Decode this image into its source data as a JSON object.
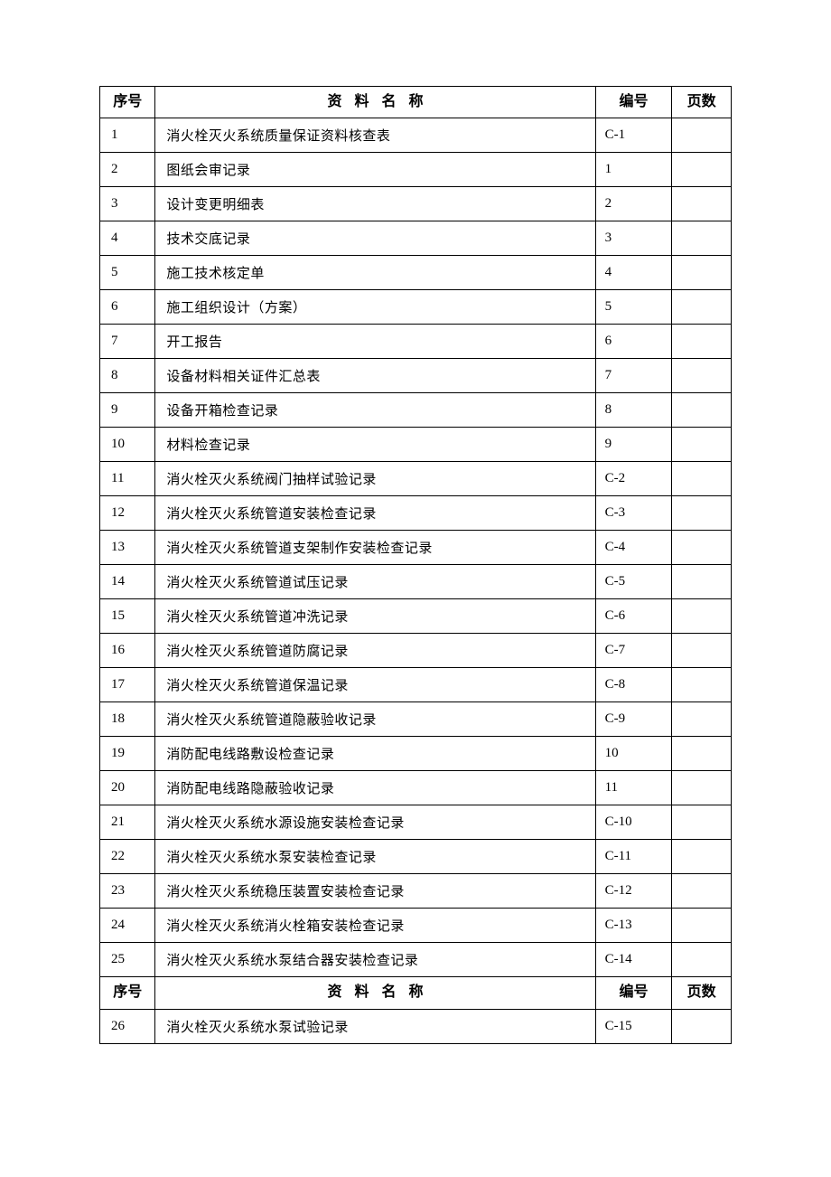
{
  "table": {
    "header": {
      "seq": "序号",
      "name": "资料名称",
      "code": "编号",
      "pages": "页数"
    },
    "columns_width": {
      "seq": 58,
      "name": 460,
      "code": 80,
      "pages": 62
    },
    "colors": {
      "border": "#000000",
      "text": "#000000",
      "background": "#ffffff"
    },
    "typography": {
      "font_family": "SimSun",
      "header_fontsize": 16,
      "header_fontweight": "bold",
      "body_fontsize": 15,
      "header_name_letterspacing": 14
    },
    "rows": [
      {
        "seq": "1",
        "name": "消火栓灭火系统质量保证资料核查表",
        "code": "C-1",
        "pages": ""
      },
      {
        "seq": "2",
        "name": "图纸会审记录",
        "code": "1",
        "pages": ""
      },
      {
        "seq": "3",
        "name": "设计变更明细表",
        "code": "2",
        "pages": ""
      },
      {
        "seq": "4",
        "name": "技术交底记录",
        "code": "3",
        "pages": ""
      },
      {
        "seq": "5",
        "name": "施工技术核定单",
        "code": "4",
        "pages": ""
      },
      {
        "seq": "6",
        "name": "施工组织设计（方案）",
        "code": "5",
        "pages": ""
      },
      {
        "seq": "7",
        "name": "开工报告",
        "code": "6",
        "pages": ""
      },
      {
        "seq": "8",
        "name": "设备材料相关证件汇总表",
        "code": "7",
        "pages": ""
      },
      {
        "seq": "9",
        "name": "设备开箱检查记录",
        "code": "8",
        "pages": ""
      },
      {
        "seq": "10",
        "name": "材料检查记录",
        "code": "9",
        "pages": ""
      },
      {
        "seq": "11",
        "name": "消火栓灭火系统阀门抽样试验记录",
        "code": "C-2",
        "pages": ""
      },
      {
        "seq": "12",
        "name": "消火栓灭火系统管道安装检查记录",
        "code": "C-3",
        "pages": ""
      },
      {
        "seq": "13",
        "name": "消火栓灭火系统管道支架制作安装检查记录",
        "code": "C-4",
        "pages": ""
      },
      {
        "seq": "14",
        "name": "消火栓灭火系统管道试压记录",
        "code": "C-5",
        "pages": ""
      },
      {
        "seq": "15",
        "name": "消火栓灭火系统管道冲洗记录",
        "code": "C-6",
        "pages": ""
      },
      {
        "seq": "16",
        "name": "消火栓灭火系统管道防腐记录",
        "code": "C-7",
        "pages": ""
      },
      {
        "seq": "17",
        "name": "消火栓灭火系统管道保温记录",
        "code": "C-8",
        "pages": ""
      },
      {
        "seq": "18",
        "name": "消火栓灭火系统管道隐蔽验收记录",
        "code": "C-9",
        "pages": ""
      },
      {
        "seq": "19",
        "name": "消防配电线路敷设检查记录",
        "code": "10",
        "pages": ""
      },
      {
        "seq": "20",
        "name": "消防配电线路隐蔽验收记录",
        "code": "11",
        "pages": ""
      },
      {
        "seq": "21",
        "name": "消火栓灭火系统水源设施安装检查记录",
        "code": "C-10",
        "pages": ""
      },
      {
        "seq": "22",
        "name": "消火栓灭火系统水泵安装检查记录",
        "code": "C-11",
        "pages": ""
      },
      {
        "seq": "23",
        "name": "消火栓灭火系统稳压装置安装检查记录",
        "code": "C-12",
        "pages": ""
      },
      {
        "seq": "24",
        "name": "消火栓灭火系统消火栓箱安装检查记录",
        "code": "C-13",
        "pages": ""
      },
      {
        "seq": "25",
        "name": "消火栓灭火系统水泵结合器安装检查记录",
        "code": "C-14",
        "pages": ""
      }
    ],
    "rows2": [
      {
        "seq": "26",
        "name": "消火栓灭火系统水泵试验记录",
        "code": "C-15",
        "pages": ""
      }
    ]
  }
}
